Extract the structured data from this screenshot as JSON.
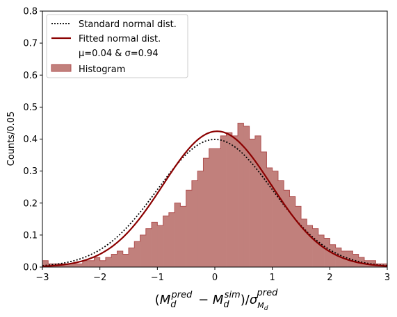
{
  "chart_data": {
    "type": "histogram",
    "ylabel": "Counts/0.05",
    "xlabel": {
      "text": "(M_d^pred − M_d^sim)/σ_{M_d}^pred"
    },
    "xlim": [
      -3,
      3
    ],
    "ylim": [
      0,
      0.8
    ],
    "x_ticks": [
      -3,
      -2,
      -1,
      0,
      1,
      2,
      3
    ],
    "y_ticks": [
      0.0,
      0.1,
      0.2,
      0.3,
      0.4,
      0.5,
      0.6,
      0.7,
      0.8
    ],
    "x_tick_labels": [
      "−3",
      "−2",
      "−1",
      "0",
      "1",
      "2",
      "3"
    ],
    "y_tick_labels": [
      "0.0",
      "0.1",
      "0.2",
      "0.3",
      "0.4",
      "0.5",
      "0.6",
      "0.7",
      "0.8"
    ],
    "histogram": {
      "bin_width": 0.1,
      "x_start": -3.0,
      "values": [
        0.02,
        0.01,
        0.01,
        0.01,
        0.01,
        0.01,
        0.01,
        0.02,
        0.02,
        0.03,
        0.02,
        0.03,
        0.04,
        0.05,
        0.04,
        0.06,
        0.08,
        0.1,
        0.12,
        0.14,
        0.13,
        0.16,
        0.17,
        0.2,
        0.19,
        0.24,
        0.27,
        0.3,
        0.34,
        0.37,
        0.37,
        0.41,
        0.42,
        0.41,
        0.45,
        0.44,
        0.4,
        0.41,
        0.36,
        0.31,
        0.3,
        0.27,
        0.24,
        0.22,
        0.19,
        0.15,
        0.13,
        0.12,
        0.1,
        0.09,
        0.07,
        0.06,
        0.05,
        0.05,
        0.04,
        0.03,
        0.02,
        0.02,
        0.01,
        0.01
      ],
      "fill_color": "#c1807c",
      "edge_color": "#b05050",
      "name": "Histogram"
    },
    "series": [
      {
        "name": "Standard normal dist.",
        "kind": "pdf",
        "mu": 0.0,
        "sigma": 1.0,
        "color": "#000000",
        "style": "dotted"
      },
      {
        "name": "Fitted normal dist.",
        "kind": "pdf",
        "mu": 0.04,
        "sigma": 0.94,
        "color": "#8b0000",
        "style": "solid"
      }
    ],
    "legend": {
      "placement": "top-left",
      "entries": [
        {
          "label": "Standard normal dist.",
          "type": "dotted-line"
        },
        {
          "label": "Fitted normal dist.",
          "type": "solid-line"
        },
        {
          "label": "μ=0.04 & σ=0.94",
          "type": "text"
        },
        {
          "label": "Histogram",
          "type": "patch"
        }
      ]
    },
    "grid": false
  }
}
